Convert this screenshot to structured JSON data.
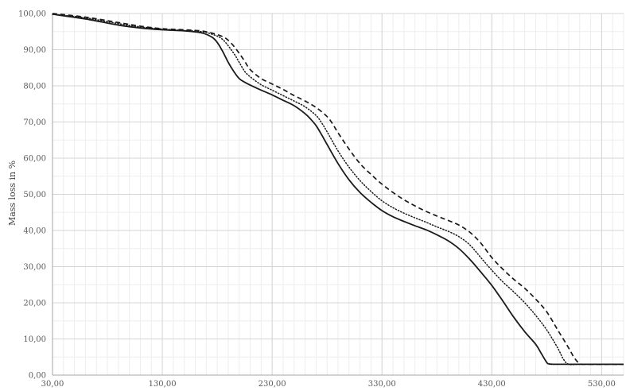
{
  "chart_data": {
    "type": "line",
    "title": "",
    "xlabel": "",
    "ylabel": "Mass loss in %",
    "xlim": [
      30,
      550
    ],
    "ylim": [
      0,
      100
    ],
    "x_ticks": [
      30,
      130,
      230,
      330,
      430,
      530
    ],
    "x_tick_labels": [
      "30,00",
      "130,00",
      "230,00",
      "330,00",
      "430,00",
      "530,00"
    ],
    "y_ticks": [
      0,
      10,
      20,
      30,
      40,
      50,
      60,
      70,
      80,
      90,
      100
    ],
    "y_tick_labels": [
      "0,00",
      "10,00",
      "20,00",
      "30,00",
      "40,00",
      "50,00",
      "60,00",
      "70,00",
      "80,00",
      "90,00",
      "100,00"
    ],
    "x_minor_step": 10,
    "y_minor_step": 5,
    "grid": true,
    "legend": "none",
    "series": [
      {
        "style": "solid",
        "color": "#1a1a1a",
        "x": [
          30,
          60,
          90,
          110,
          130,
          150,
          165,
          175,
          180,
          185,
          190,
          195,
          200,
          205,
          210,
          220,
          230,
          240,
          250,
          260,
          265,
          270,
          275,
          280,
          290,
          300,
          310,
          320,
          330,
          340,
          350,
          360,
          370,
          380,
          390,
          400,
          410,
          420,
          430,
          440,
          450,
          460,
          470,
          475,
          480,
          482,
          485,
          490,
          500,
          520,
          550
        ],
        "y": [
          99.8,
          98.5,
          96.8,
          96.0,
          95.5,
          95.2,
          94.7,
          93.5,
          92.0,
          89.5,
          86.5,
          84.0,
          82.0,
          81.0,
          80.2,
          78.8,
          77.5,
          76.0,
          74.5,
          72.3,
          70.8,
          69.0,
          66.5,
          63.8,
          58.5,
          54.0,
          50.5,
          47.8,
          45.5,
          43.8,
          42.5,
          41.3,
          40.2,
          38.8,
          37.2,
          35.0,
          32.0,
          28.5,
          24.8,
          20.5,
          16.0,
          12.0,
          8.5,
          6.0,
          3.5,
          3.1,
          3.0,
          3.0,
          3.0,
          3.0,
          3.0
        ]
      },
      {
        "style": "dotted",
        "color": "#1a1a1a",
        "x": [
          30,
          60,
          90,
          110,
          130,
          150,
          165,
          175,
          185,
          195,
          200,
          205,
          210,
          220,
          230,
          240,
          250,
          260,
          270,
          275,
          280,
          290,
          300,
          310,
          320,
          330,
          340,
          350,
          360,
          370,
          380,
          390,
          400,
          410,
          420,
          430,
          440,
          450,
          460,
          470,
          480,
          490,
          495,
          500,
          510,
          530,
          550
        ],
        "y": [
          99.8,
          98.8,
          97.2,
          96.3,
          95.7,
          95.3,
          95.0,
          94.3,
          92.8,
          89.0,
          86.5,
          84.0,
          82.5,
          80.3,
          78.8,
          77.3,
          75.8,
          74.2,
          71.8,
          69.8,
          67.3,
          62.0,
          57.5,
          53.8,
          50.8,
          48.2,
          46.3,
          44.8,
          43.5,
          42.3,
          41.0,
          39.8,
          38.3,
          36.0,
          32.5,
          29.0,
          25.8,
          23.0,
          20.0,
          16.5,
          12.5,
          7.5,
          4.5,
          3.0,
          3.0,
          3.0,
          3.0
        ]
      },
      {
        "style": "dashed",
        "color": "#1a1a1a",
        "x": [
          30,
          60,
          90,
          110,
          130,
          150,
          165,
          175,
          185,
          190,
          195,
          200,
          205,
          210,
          220,
          230,
          240,
          250,
          260,
          270,
          280,
          285,
          290,
          300,
          310,
          320,
          330,
          340,
          350,
          360,
          370,
          380,
          390,
          400,
          410,
          420,
          430,
          440,
          450,
          460,
          470,
          480,
          490,
          500,
          505,
          510,
          515,
          520,
          550
        ],
        "y": [
          100.0,
          99.0,
          97.5,
          96.5,
          95.8,
          95.5,
          95.2,
          94.6,
          93.6,
          92.6,
          91.0,
          89.0,
          86.8,
          84.5,
          82.0,
          80.5,
          79.0,
          77.3,
          75.8,
          74.0,
          71.5,
          69.5,
          67.0,
          62.5,
          58.5,
          55.5,
          52.8,
          50.5,
          48.5,
          46.8,
          45.3,
          44.0,
          42.8,
          41.5,
          39.5,
          36.5,
          32.5,
          29.3,
          26.5,
          24.0,
          21.0,
          17.5,
          12.5,
          7.5,
          4.8,
          3.2,
          3.0,
          3.0,
          3.0
        ]
      }
    ]
  }
}
